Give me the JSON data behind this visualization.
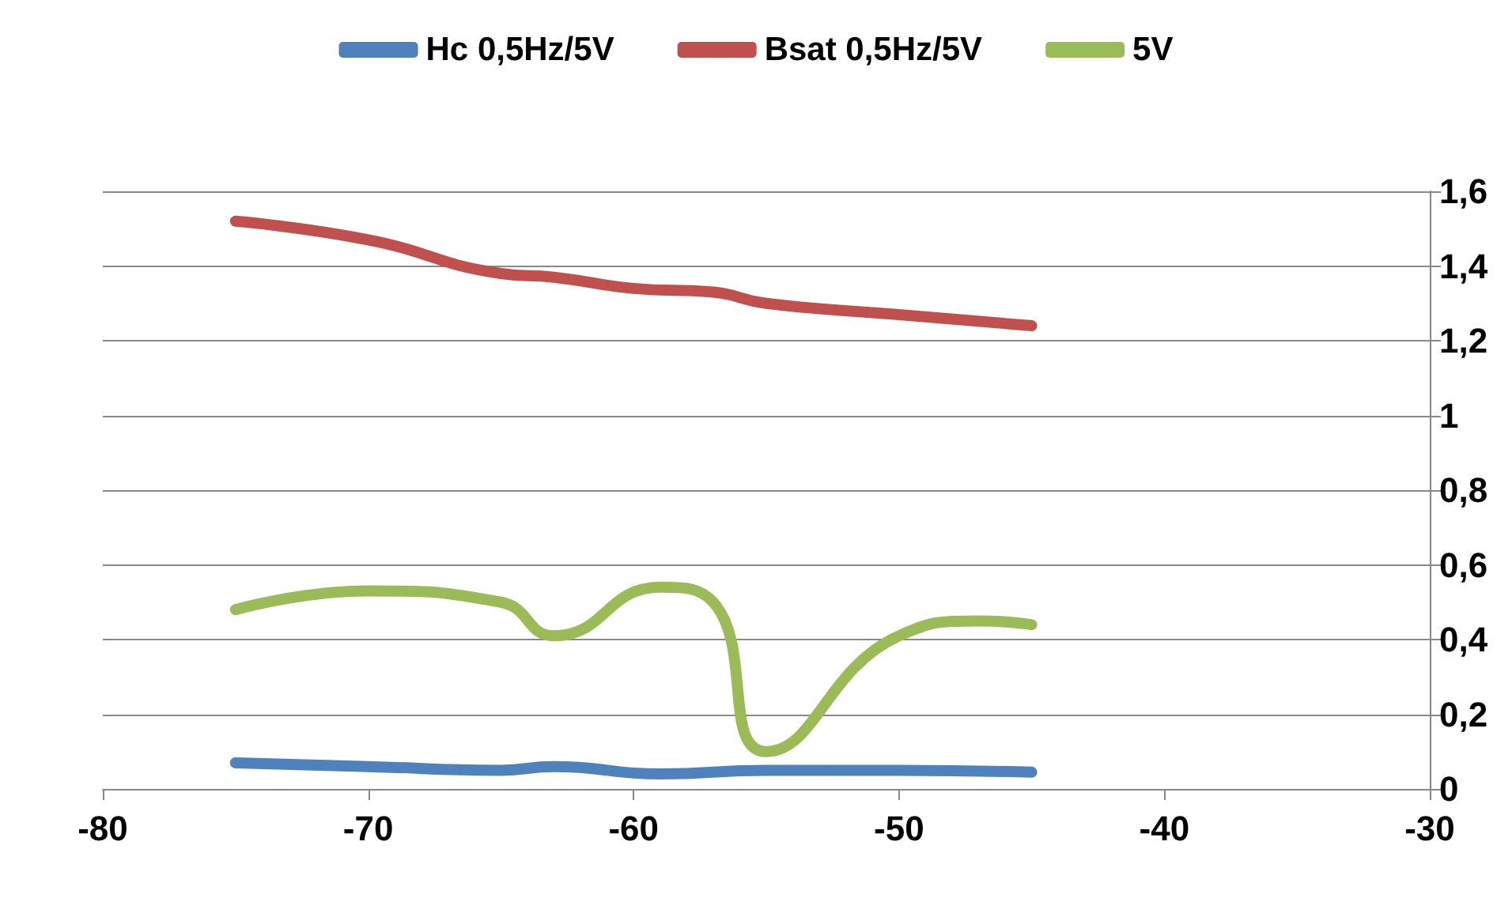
{
  "chart_data": {
    "type": "line",
    "legend": "top",
    "grid": "y",
    "line_style": "solid",
    "xlim": [
      -80,
      -30
    ],
    "xticks": [
      -80,
      -70,
      -60,
      -50,
      -40,
      -30
    ],
    "ylim": [
      0,
      1.6
    ],
    "yticks": [
      0,
      {
        "value": 0.2,
        "label": "0,2"
      },
      {
        "value": 0.4,
        "label": "0,4"
      },
      {
        "value": 0.6,
        "label": "0,6"
      },
      {
        "value": 0.8,
        "label": "0,8"
      },
      1,
      {
        "value": 1.2,
        "label": "1,2"
      },
      {
        "value": 1.4,
        "label": "1,4"
      },
      {
        "value": 1.6,
        "label": "1,6"
      }
    ],
    "series": [
      {
        "name": "Hc 0,5Hz/5V",
        "color": "#4f81bd",
        "x": [
          -75,
          -70,
          -65,
          -63,
          -59,
          -55,
          -50,
          -45
        ],
        "values": [
          0.07,
          0.06,
          0.05,
          0.06,
          0.04,
          0.05,
          0.05,
          0.045
        ]
      },
      {
        "name": "Bsat 0,5Hz/5V",
        "color": "#c0504d",
        "x": [
          -75,
          -70,
          -65,
          -63,
          -60,
          -57,
          -55,
          -50,
          -45
        ],
        "values": [
          1.52,
          1.47,
          1.38,
          1.37,
          1.34,
          1.33,
          1.3,
          1.27,
          1.24
        ]
      },
      {
        "name": "5V",
        "color": "#9bbb59",
        "x": [
          -75,
          -70,
          -65,
          -63,
          -59,
          -57,
          -55,
          -50,
          -47,
          -45
        ],
        "values": [
          0.48,
          0.53,
          0.5,
          0.41,
          0.54,
          0.5,
          0.1,
          0.41,
          0.45,
          0.44
        ]
      }
    ]
  }
}
